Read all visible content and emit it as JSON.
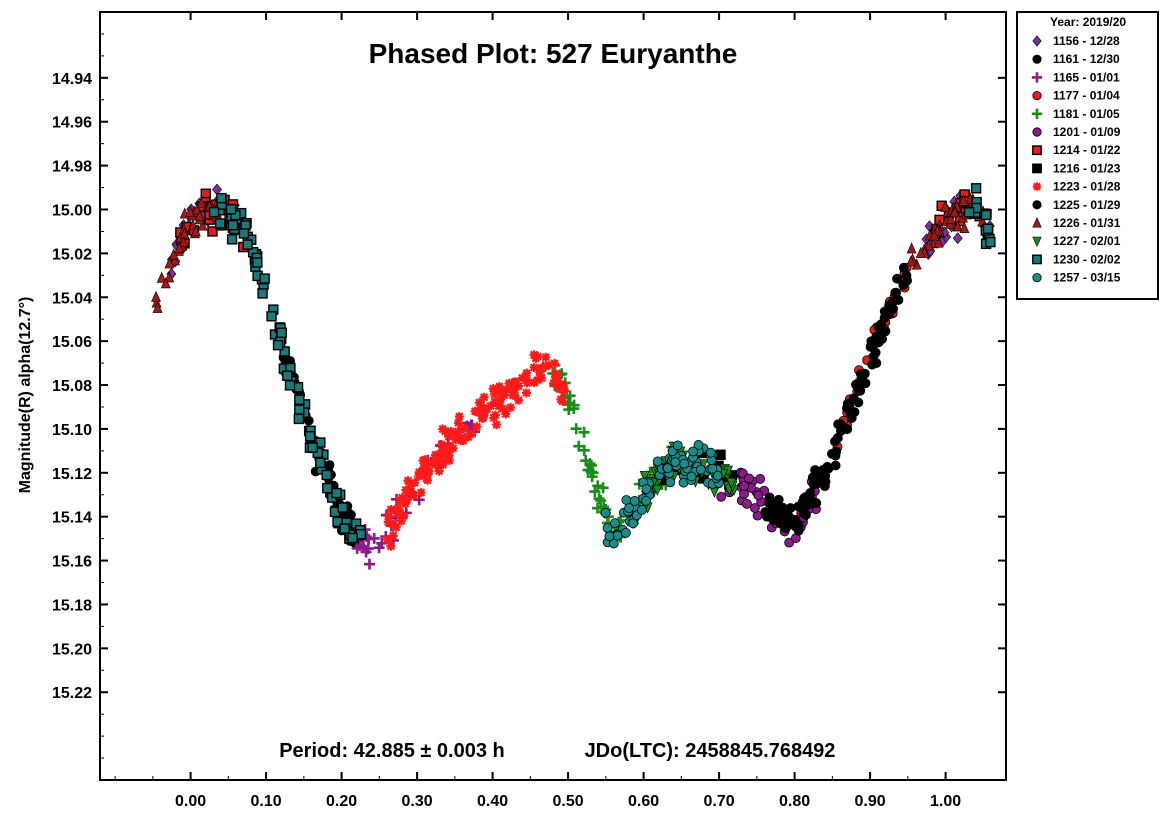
{
  "chart_data": {
    "type": "scatter",
    "title": "Phased Plot: 527 Euryanthe",
    "ylabel": "Magnitude(R) alpha(12.7°)",
    "xlabel": "",
    "annotation_period": "Period: 42.885 ± 0.003 h",
    "annotation_epoch": "JDo(LTC): 2458845.768492",
    "xlim": [
      -0.12,
      1.08
    ],
    "ylim": [
      15.26,
      14.91
    ],
    "y_inverted": true,
    "x_ticks": [
      "0.00",
      "0.10",
      "0.20",
      "0.30",
      "0.40",
      "0.50",
      "0.60",
      "0.70",
      "0.80",
      "0.90",
      "1.00"
    ],
    "x_tick_values": [
      0,
      0.1,
      0.2,
      0.3,
      0.4,
      0.5,
      0.6,
      0.7,
      0.8,
      0.9,
      1.0
    ],
    "y_ticks": [
      "14.94",
      "14.96",
      "14.98",
      "15.00",
      "15.02",
      "15.04",
      "15.06",
      "15.08",
      "15.10",
      "15.12",
      "15.14",
      "15.16",
      "15.18",
      "15.20",
      "15.22"
    ],
    "y_tick_values": [
      14.94,
      14.96,
      14.98,
      15.0,
      15.02,
      15.04,
      15.06,
      15.08,
      15.1,
      15.12,
      15.14,
      15.16,
      15.18,
      15.2,
      15.22
    ],
    "grid": false,
    "legend_position": "outside-top-right",
    "legend_title": "Year: 2019/20",
    "series": [
      {
        "name": "1156 - 12/28",
        "marker": "diamond",
        "color": "#7a2f9e",
        "x_range": [
          -0.03,
          0.06
        ],
        "y_center": 14.995,
        "y_spread": 0.012,
        "n": 28
      },
      {
        "name": "1161 - 12/30",
        "marker": "circle",
        "color": "#000000",
        "x_range": [
          0.12,
          0.22
        ],
        "y_center": 15.09,
        "y_spread": 0.05,
        "n": 60
      },
      {
        "name": "1165 - 01/01",
        "marker": "plus",
        "color": "#8b1a8b",
        "x_range": [
          0.22,
          0.38
        ],
        "y_center": 15.125,
        "y_spread": 0.04,
        "n": 40
      },
      {
        "name": "1177 - 01/04",
        "marker": "circle",
        "color": "#e11d1d",
        "x_range": [
          0.85,
          0.95
        ],
        "y_center": 15.08,
        "y_spread": 0.04,
        "n": 30
      },
      {
        "name": "1181 - 01/05",
        "marker": "plus",
        "color": "#1a8c1a",
        "x_range": [
          0.46,
          0.64
        ],
        "y_center": 15.12,
        "y_spread": 0.06,
        "n": 80
      },
      {
        "name": "1201 - 01/09",
        "marker": "circle",
        "color": "#8b1a8b",
        "x_range": [
          0.7,
          0.83
        ],
        "y_center": 15.135,
        "y_spread": 0.03,
        "n": 50
      },
      {
        "name": "1214 - 01/22",
        "marker": "square",
        "color": "#e11d1d",
        "x_range": [
          -0.02,
          0.08
        ],
        "y_center": 15.005,
        "y_spread": 0.015,
        "n": 25
      },
      {
        "name": "1216 - 01/23",
        "marker": "square",
        "color": "#000000",
        "x_range": [
          0.62,
          0.72
        ],
        "y_center": 15.125,
        "y_spread": 0.02,
        "n": 15
      },
      {
        "name": "1223 - 01/28",
        "marker": "asterisk",
        "color": "#ff1a1a",
        "x_range": [
          0.26,
          0.5
        ],
        "y_center": 15.105,
        "y_spread": 0.05,
        "n": 150
      },
      {
        "name": "1225 - 01/29",
        "marker": "circle",
        "color": "#000000",
        "x_range": [
          0.76,
          0.95
        ],
        "y_center": 15.07,
        "y_spread": 0.08,
        "n": 120
      },
      {
        "name": "1226 - 01/31",
        "marker": "triangle-up",
        "color": "#a01818",
        "x_range": [
          -0.05,
          0.05
        ],
        "y_center": 15.03,
        "y_spread": 0.03,
        "n": 40
      },
      {
        "name": "1227 - 02/01",
        "marker": "triangle-down",
        "color": "#1a8c1a",
        "x_range": [
          0.6,
          0.72
        ],
        "y_center": 15.12,
        "y_spread": 0.03,
        "n": 60
      },
      {
        "name": "1230 - 02/02",
        "marker": "square",
        "color": "#1a7a7a",
        "x_range": [
          0.03,
          0.23
        ],
        "y_center": 15.08,
        "y_spread": 0.07,
        "n": 90
      },
      {
        "name": "1257 - 03/15",
        "marker": "circle",
        "color": "#1a8c8c",
        "x_range": [
          0.54,
          0.7
        ],
        "y_center": 15.13,
        "y_spread": 0.035,
        "n": 90
      }
    ]
  }
}
